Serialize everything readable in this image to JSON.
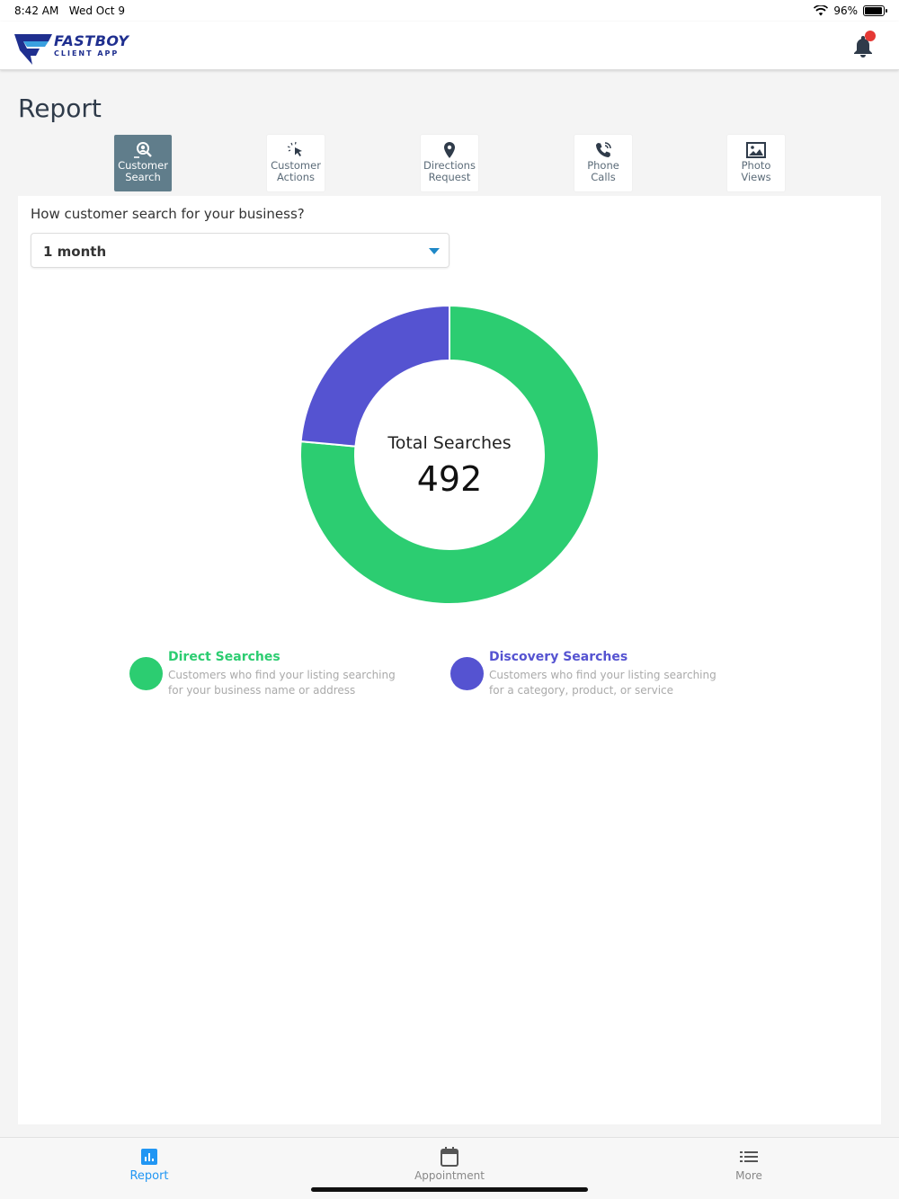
{
  "status_bar": {
    "time": "8:42 AM",
    "date": "Wed Oct 9",
    "battery": "96%",
    "battery_level": 0.96
  },
  "header": {
    "logo_main": "FASTBOY",
    "logo_sub": "CLIENT APP",
    "has_notification": true
  },
  "page_title": "Report",
  "tabs": [
    {
      "line1": "Customer",
      "line2": "Search",
      "icon": "search-person-icon",
      "active": true
    },
    {
      "line1": "Customer",
      "line2": "Actions",
      "icon": "cursor-click-icon",
      "active": false
    },
    {
      "line1": "Directions",
      "line2": "Request",
      "icon": "map-pin-icon",
      "active": false
    },
    {
      "line1": "Phone",
      "line2": "Calls",
      "icon": "phone-icon",
      "active": false
    },
    {
      "line1": "Photo",
      "line2": "Views",
      "icon": "image-icon",
      "active": false
    }
  ],
  "question": "How customer search for your business?",
  "period_select": {
    "value": "1 month"
  },
  "chart_data": {
    "type": "pie",
    "center_label": "Total Searches",
    "center_value": "492",
    "series": [
      {
        "name": "Direct Searches",
        "value": 376,
        "color": "#2ccd71"
      },
      {
        "name": "Discovery Searches",
        "value": 116,
        "color": "#5553d1"
      }
    ]
  },
  "legend": [
    {
      "title": "Direct Searches",
      "line1": "Customers who find your listing searching",
      "line2": "for your business name or address",
      "color": "#2ccd71"
    },
    {
      "title": "Discovery Searches",
      "line1": "Customers who find your listing searching",
      "line2": "for a category, product, or service",
      "color": "#5553d1"
    }
  ],
  "bottom_nav": [
    {
      "label": "Report",
      "icon": "bar-chart-icon",
      "active": true,
      "color": "#2196f3"
    },
    {
      "label": "Appointment",
      "icon": "calendar-icon",
      "active": false
    },
    {
      "label": "More",
      "icon": "list-icon",
      "active": false
    }
  ]
}
